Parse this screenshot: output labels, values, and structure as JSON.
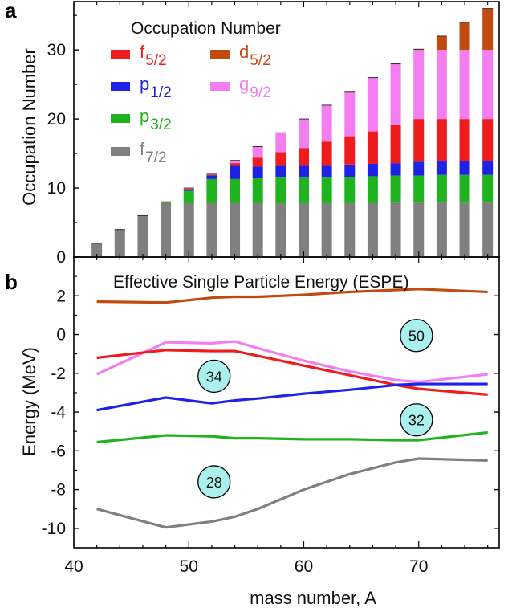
{
  "chart_data": [
    {
      "panel": "a",
      "type": "bar",
      "stacked": true,
      "title": "Occupation Number",
      "ylabel": "Occupation Number",
      "xlim": [
        40,
        77
      ],
      "ylim": [
        0,
        37
      ],
      "yticks": [
        0,
        10,
        20,
        30
      ],
      "x": [
        42,
        44,
        46,
        48,
        50,
        52,
        54,
        56,
        58,
        60,
        62,
        64,
        66,
        68,
        70,
        72,
        74,
        76
      ],
      "series": [
        {
          "name": "f",
          "sub": "7/2",
          "color": "#808080",
          "values": [
            2,
            4,
            6,
            7.8,
            7.8,
            7.8,
            7.8,
            7.8,
            7.8,
            7.8,
            7.8,
            7.8,
            7.8,
            7.9,
            7.9,
            7.9,
            7.9,
            7.9
          ]
        },
        {
          "name": "p",
          "sub": "3/2",
          "color": "#1fb31f",
          "values": [
            0,
            0,
            0,
            0.1,
            1.8,
            3.5,
            3.5,
            3.6,
            3.7,
            3.7,
            3.7,
            3.8,
            3.9,
            3.9,
            3.9,
            4.0,
            4.0,
            4.0
          ]
        },
        {
          "name": "p",
          "sub": "1/2",
          "color": "#1e22e6",
          "values": [
            0,
            0,
            0,
            0,
            0.2,
            0.5,
            1.9,
            1.7,
            1.7,
            1.7,
            1.7,
            1.8,
            1.8,
            1.8,
            2.0,
            2.0,
            2.0,
            2.0
          ]
        },
        {
          "name": "f",
          "sub": "5/2",
          "color": "#ee1c1c",
          "values": [
            0,
            0,
            0,
            0.1,
            0.1,
            0.1,
            0.4,
            1.3,
            2.0,
            2.6,
            3.5,
            4.1,
            4.7,
            5.5,
            6.2,
            6.1,
            6.1,
            6.1
          ]
        },
        {
          "name": "g",
          "sub": "9/2",
          "color": "#f27ef2",
          "values": [
            0,
            0,
            0,
            0,
            0.1,
            0.1,
            0.4,
            1.6,
            2.8,
            4.2,
            5.3,
            6.3,
            7.8,
            8.8,
            10.0,
            10.0,
            10.0,
            10.0
          ]
        },
        {
          "name": "d",
          "sub": "5/2",
          "color": "#c04a10",
          "values": [
            0,
            0,
            0,
            0,
            0,
            0,
            0,
            0,
            0,
            0,
            0,
            0.2,
            0,
            0.1,
            0.1,
            2.0,
            4.0,
            6.0
          ]
        }
      ]
    },
    {
      "panel": "b",
      "type": "line",
      "title": "Effective Single Particle Energy (ESPE)",
      "xlabel": "mass number, A",
      "ylabel": "Energy (MeV)",
      "xlim": [
        40,
        77
      ],
      "ylim": [
        -11,
        4
      ],
      "xticks": [
        40,
        50,
        60,
        70
      ],
      "yticks": [
        -10,
        -8,
        -6,
        -4,
        -2,
        0,
        2
      ],
      "series": [
        {
          "name": "d5/2",
          "color": "#c04a10",
          "x": [
            42,
            48,
            52,
            54,
            56,
            60,
            64,
            68,
            70,
            76
          ],
          "y": [
            1.7,
            1.65,
            1.9,
            1.95,
            1.95,
            2.05,
            2.2,
            2.3,
            2.35,
            2.2
          ]
        },
        {
          "name": "g9/2",
          "color": "#f27ef2",
          "x": [
            42,
            48,
            52,
            54,
            56,
            60,
            64,
            68,
            70,
            76
          ],
          "y": [
            -2.05,
            -0.4,
            -0.45,
            -0.35,
            -0.7,
            -1.35,
            -1.9,
            -2.35,
            -2.45,
            -2.05
          ]
        },
        {
          "name": "f5/2",
          "color": "#ee1c1c",
          "x": [
            42,
            48,
            52,
            54,
            56,
            60,
            64,
            68,
            70,
            76
          ],
          "y": [
            -1.2,
            -0.8,
            -0.85,
            -0.85,
            -1.1,
            -1.6,
            -2.1,
            -2.6,
            -2.8,
            -3.1
          ]
        },
        {
          "name": "p1/2",
          "color": "#1e22e6",
          "x": [
            42,
            48,
            52,
            54,
            56,
            60,
            64,
            68,
            70,
            76
          ],
          "y": [
            -3.9,
            -3.25,
            -3.55,
            -3.4,
            -3.3,
            -3.05,
            -2.85,
            -2.6,
            -2.55,
            -2.55
          ]
        },
        {
          "name": "p3/2",
          "color": "#1fb31f",
          "x": [
            42,
            48,
            52,
            54,
            56,
            60,
            64,
            68,
            70,
            76
          ],
          "y": [
            -5.55,
            -5.2,
            -5.25,
            -5.35,
            -5.35,
            -5.4,
            -5.4,
            -5.45,
            -5.45,
            -5.05
          ]
        },
        {
          "name": "f7/2",
          "color": "#808080",
          "x": [
            42,
            48,
            52,
            54,
            56,
            60,
            64,
            68,
            70,
            76
          ],
          "y": [
            -9.0,
            -9.95,
            -9.65,
            -9.4,
            -9.0,
            -8.0,
            -7.2,
            -6.6,
            -6.4,
            -6.5
          ]
        }
      ],
      "annotations": [
        {
          "text": "50",
          "x": 69.8,
          "y": -0.05
        },
        {
          "text": "34",
          "x": 52.2,
          "y": -2.15
        },
        {
          "text": "32",
          "x": 69.8,
          "y": -4.4
        },
        {
          "text": "28",
          "x": 52.2,
          "y": -7.6
        }
      ],
      "annotation_fill": "#aaf0ec"
    }
  ]
}
